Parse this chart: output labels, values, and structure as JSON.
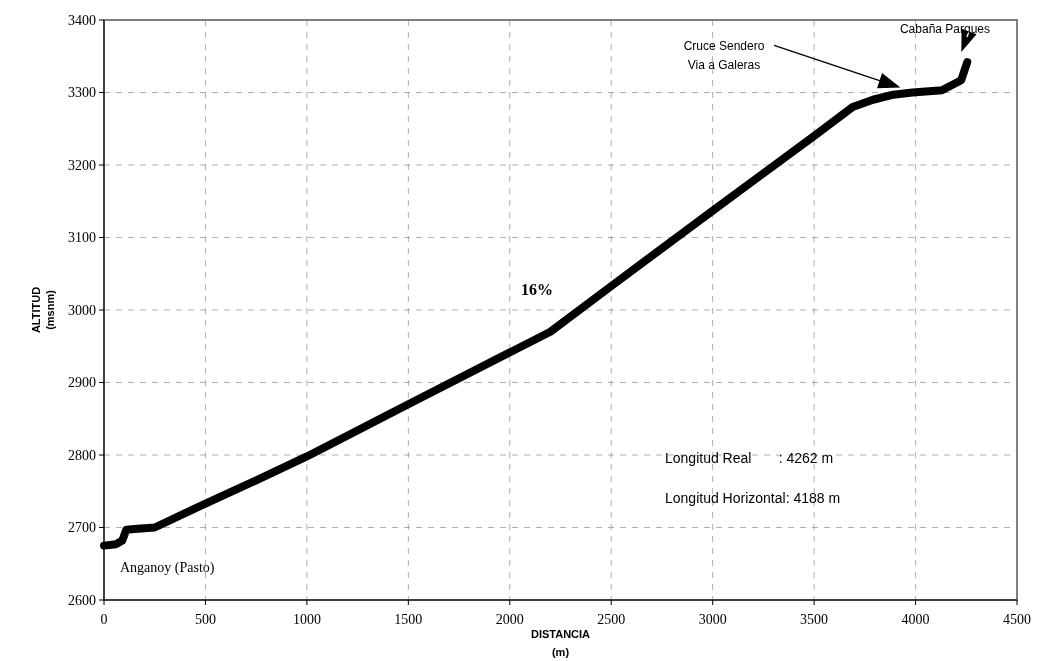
{
  "chart_data": {
    "type": "line",
    "xlabel": "DISTANCIA\n(m)",
    "ylabel": "ALTITUD\n(msnm)",
    "xlim": [
      0,
      4500
    ],
    "xticks": [
      0,
      500,
      1000,
      1500,
      2000,
      2500,
      3000,
      3500,
      4000,
      4500
    ],
    "ylim": [
      2600,
      3400
    ],
    "yticks": [
      2600,
      2700,
      2800,
      2900,
      3000,
      3100,
      3200,
      3300,
      3400
    ],
    "grid": true,
    "marker": "none",
    "line_style": "solid",
    "series": [
      {
        "color": "#000000",
        "x": [
          0,
          60,
          90,
          110,
          150,
          250,
          500,
          750,
          1000,
          1500,
          2200,
          2500,
          3000,
          3500,
          3690,
          3790,
          3890,
          3985,
          4130,
          4225,
          4255
        ],
        "values": [
          2675,
          2677,
          2682,
          2697,
          2698,
          2700,
          2733,
          2765,
          2798,
          2870,
          2970,
          3033,
          3137,
          3240,
          3280,
          3290,
          3297,
          3300,
          3303,
          3317,
          3342
        ]
      }
    ],
    "annotations": [
      {
        "text": "Anganoy (Pasto)",
        "x": 0,
        "y": 2675
      },
      "16%",
      "Cruce Sendero\nVia a Galeras",
      "Cabaña Parques",
      "Longitud Real       : 4262 m",
      "Longitud Horizontal: 4188 m"
    ]
  }
}
